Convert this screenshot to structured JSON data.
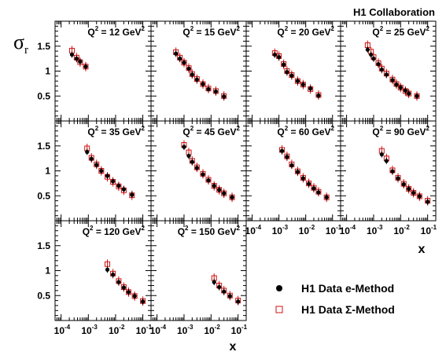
{
  "collaboration": "H1 Collaboration",
  "ylabel": {
    "symbol": "σ",
    "sub": "r"
  },
  "xlabel": "x",
  "legend": {
    "e": "H1 Data e-Method",
    "sigma": "H1 Data Σ-Method"
  },
  "colors": {
    "e_method": "#000000",
    "sigma_method": "#d01010",
    "frame": "#000000"
  },
  "chart_data": {
    "type": "scatter",
    "xscale": "log",
    "xlim": [
      6e-05,
      0.2
    ],
    "ylim": [
      0,
      2
    ],
    "x_ticks": [
      {
        "value": 0.0001,
        "base": "10",
        "exp": "-4"
      },
      {
        "value": 0.001,
        "base": "10",
        "exp": "-3"
      },
      {
        "value": 0.01,
        "base": "10",
        "exp": "-2"
      },
      {
        "value": 0.1,
        "base": "10",
        "exp": "-1"
      }
    ],
    "y_ticks": [
      {
        "value": 0.5,
        "label": "0.5"
      },
      {
        "value": 1,
        "label": "1"
      },
      {
        "value": 1.5,
        "label": "1.5"
      }
    ],
    "series_names": [
      "H1 Data e-Method",
      "H1 Data Σ-Method"
    ],
    "panels": [
      {
        "q2": "12",
        "unit": "GeV",
        "label": "Q2 = 12 GeV2",
        "e": [
          [
            0.00025,
            1.33
          ],
          [
            0.00037,
            1.25
          ],
          [
            0.0005,
            1.19
          ],
          [
            0.0008,
            1.09
          ]
        ],
        "sigma": [
          [
            0.00025,
            1.41
          ],
          [
            0.00037,
            1.27
          ],
          [
            0.0005,
            1.18
          ],
          [
            0.0008,
            1.09
          ]
        ]
      },
      {
        "q2": "15",
        "unit": "GeV",
        "label": "Q2 = 15 GeV2",
        "e": [
          [
            0.0005,
            1.35
          ],
          [
            0.0007,
            1.25
          ],
          [
            0.001,
            1.17
          ],
          [
            0.0015,
            1.05
          ],
          [
            0.002,
            0.93
          ],
          [
            0.003,
            0.83
          ],
          [
            0.005,
            0.74
          ],
          [
            0.008,
            0.64
          ],
          [
            0.015,
            0.59
          ],
          [
            0.03,
            0.49
          ]
        ],
        "sigma": [
          [
            0.0005,
            1.38
          ],
          [
            0.0007,
            1.27
          ],
          [
            0.001,
            1.17
          ],
          [
            0.0015,
            1.06
          ],
          [
            0.002,
            0.94
          ],
          [
            0.003,
            0.84
          ],
          [
            0.005,
            0.74
          ],
          [
            0.008,
            0.65
          ],
          [
            0.015,
            0.6
          ],
          [
            0.03,
            0.5
          ]
        ]
      },
      {
        "q2": "20",
        "unit": "GeV",
        "label": "Q2 = 20 GeV2",
        "e": [
          [
            0.0007,
            1.33
          ],
          [
            0.001,
            1.28
          ],
          [
            0.0015,
            1.13
          ],
          [
            0.002,
            0.98
          ],
          [
            0.003,
            0.91
          ],
          [
            0.005,
            0.8
          ],
          [
            0.008,
            0.73
          ],
          [
            0.015,
            0.65
          ],
          [
            0.03,
            0.51
          ]
        ],
        "sigma": [
          [
            0.0007,
            1.36
          ],
          [
            0.001,
            1.3
          ],
          [
            0.0015,
            1.14
          ],
          [
            0.002,
            1.0
          ],
          [
            0.003,
            0.92
          ],
          [
            0.005,
            0.8
          ],
          [
            0.008,
            0.73
          ],
          [
            0.015,
            0.64
          ],
          [
            0.03,
            0.52
          ]
        ]
      },
      {
        "q2": "25",
        "unit": "GeV",
        "label": "Q2 = 25 GeV2",
        "e": [
          [
            0.0006,
            1.43
          ],
          [
            0.0008,
            1.33
          ],
          [
            0.001,
            1.25
          ],
          [
            0.0015,
            1.14
          ],
          [
            0.002,
            1.03
          ],
          [
            0.003,
            0.93
          ],
          [
            0.005,
            0.82
          ],
          [
            0.007,
            0.73
          ],
          [
            0.01,
            0.67
          ],
          [
            0.015,
            0.61
          ],
          [
            0.02,
            0.55
          ],
          [
            0.04,
            0.5
          ]
        ],
        "sigma": [
          [
            0.0006,
            1.52
          ],
          [
            0.0008,
            1.39
          ],
          [
            0.001,
            1.28
          ],
          [
            0.0015,
            1.16
          ],
          [
            0.002,
            1.05
          ],
          [
            0.003,
            0.95
          ],
          [
            0.005,
            0.83
          ],
          [
            0.007,
            0.74
          ],
          [
            0.01,
            0.67
          ],
          [
            0.015,
            0.6
          ],
          [
            0.02,
            0.55
          ],
          [
            0.04,
            0.5
          ]
        ]
      },
      {
        "q2": "35",
        "unit": "GeV",
        "label": "Q2 = 35 GeV2",
        "e": [
          [
            0.0009,
            1.38
          ],
          [
            0.0013,
            1.24
          ],
          [
            0.002,
            1.12
          ],
          [
            0.003,
            1.0
          ],
          [
            0.005,
            0.9
          ],
          [
            0.008,
            0.79
          ],
          [
            0.013,
            0.7
          ],
          [
            0.02,
            0.63
          ],
          [
            0.04,
            0.52
          ]
        ],
        "sigma": [
          [
            0.0009,
            1.45
          ],
          [
            0.0013,
            1.26
          ],
          [
            0.002,
            1.13
          ],
          [
            0.003,
            1.0
          ],
          [
            0.005,
            0.88
          ],
          [
            0.008,
            0.78
          ],
          [
            0.013,
            0.69
          ],
          [
            0.02,
            0.61
          ],
          [
            0.04,
            0.51
          ]
        ]
      },
      {
        "q2": "45",
        "unit": "GeV",
        "label": "Q2 = 45 GeV2",
        "e": [
          [
            0.001,
            1.48
          ],
          [
            0.0015,
            1.3
          ],
          [
            0.002,
            1.18
          ],
          [
            0.003,
            1.06
          ],
          [
            0.005,
            0.93
          ],
          [
            0.008,
            0.81
          ],
          [
            0.013,
            0.7
          ],
          [
            0.02,
            0.62
          ],
          [
            0.03,
            0.55
          ],
          [
            0.06,
            0.47
          ]
        ],
        "sigma": [
          [
            0.001,
            1.52
          ],
          [
            0.0015,
            1.37
          ],
          [
            0.002,
            1.2
          ],
          [
            0.003,
            1.07
          ],
          [
            0.005,
            0.94
          ],
          [
            0.008,
            0.82
          ],
          [
            0.013,
            0.7
          ],
          [
            0.02,
            0.62
          ],
          [
            0.03,
            0.55
          ],
          [
            0.06,
            0.47
          ]
        ]
      },
      {
        "q2": "60",
        "unit": "GeV",
        "label": "Q2 = 60 GeV2",
        "e": [
          [
            0.0013,
            1.4
          ],
          [
            0.002,
            1.28
          ],
          [
            0.003,
            1.11
          ],
          [
            0.005,
            0.98
          ],
          [
            0.008,
            0.85
          ],
          [
            0.013,
            0.74
          ],
          [
            0.02,
            0.65
          ],
          [
            0.03,
            0.57
          ],
          [
            0.06,
            0.47
          ]
        ],
        "sigma": [
          [
            0.0013,
            1.42
          ],
          [
            0.002,
            1.29
          ],
          [
            0.003,
            1.13
          ],
          [
            0.005,
            0.99
          ],
          [
            0.008,
            0.86
          ],
          [
            0.013,
            0.75
          ],
          [
            0.02,
            0.66
          ],
          [
            0.03,
            0.58
          ],
          [
            0.06,
            0.47
          ]
        ]
      },
      {
        "q2": "90",
        "unit": "GeV",
        "label": "Q2 = 90 GeV2",
        "e": [
          [
            0.002,
            1.33
          ],
          [
            0.003,
            1.2
          ],
          [
            0.005,
            0.99
          ],
          [
            0.008,
            0.85
          ],
          [
            0.013,
            0.73
          ],
          [
            0.02,
            0.64
          ],
          [
            0.03,
            0.56
          ],
          [
            0.05,
            0.49
          ],
          [
            0.1,
            0.38
          ]
        ],
        "sigma": [
          [
            0.002,
            1.4
          ],
          [
            0.003,
            1.25
          ],
          [
            0.005,
            1.01
          ],
          [
            0.008,
            0.86
          ],
          [
            0.013,
            0.74
          ],
          [
            0.02,
            0.64
          ],
          [
            0.03,
            0.56
          ],
          [
            0.05,
            0.49
          ],
          [
            0.1,
            0.4
          ]
        ]
      },
      {
        "q2": "120",
        "unit": "GeV",
        "label": "Q2 = 120 GeV2",
        "e": [
          [
            0.005,
            1.02
          ],
          [
            0.008,
            0.92
          ],
          [
            0.013,
            0.77
          ],
          [
            0.02,
            0.66
          ],
          [
            0.03,
            0.57
          ],
          [
            0.05,
            0.49
          ],
          [
            0.1,
            0.38
          ]
        ],
        "sigma": [
          [
            0.005,
            1.13
          ],
          [
            0.008,
            0.94
          ],
          [
            0.013,
            0.79
          ],
          [
            0.02,
            0.67
          ],
          [
            0.03,
            0.57
          ],
          [
            0.05,
            0.49
          ],
          [
            0.1,
            0.39
          ]
        ]
      },
      {
        "q2": "150",
        "unit": "GeV",
        "label": "Q2 = 150 GeV2",
        "e": [
          [
            0.013,
            0.77
          ],
          [
            0.02,
            0.67
          ],
          [
            0.03,
            0.58
          ],
          [
            0.05,
            0.49
          ],
          [
            0.1,
            0.38
          ]
        ],
        "sigma": [
          [
            0.013,
            0.85
          ],
          [
            0.02,
            0.7
          ],
          [
            0.03,
            0.6
          ],
          [
            0.05,
            0.5
          ],
          [
            0.1,
            0.4
          ]
        ]
      }
    ]
  }
}
